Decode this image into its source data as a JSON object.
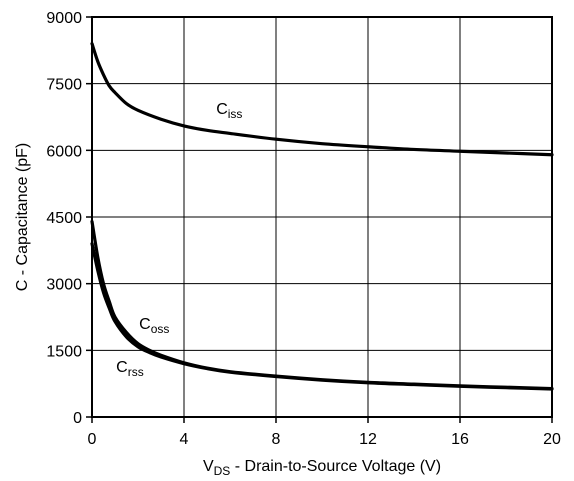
{
  "chart_data": {
    "type": "line",
    "title": "",
    "xlabel": {
      "main": "V",
      "sub": "DS",
      "rest": " - Drain-to-Source Voltage (V)"
    },
    "ylabel": "C - Capacitance (pF)",
    "xlim": [
      0,
      20
    ],
    "ylim": [
      0,
      9000
    ],
    "xticks": [
      0,
      4,
      8,
      12,
      16,
      20
    ],
    "yticks": [
      0,
      1500,
      3000,
      4500,
      6000,
      7500,
      9000
    ],
    "x_tick_labels": [
      "0",
      "4",
      "8",
      "12",
      "16",
      "20"
    ],
    "y_tick_labels": [
      "0",
      "1500",
      "3000",
      "4500",
      "6000",
      "7500",
      "9000"
    ],
    "grid": true,
    "legend": "none",
    "colors": {
      "line": "#000000",
      "grid": "#000000",
      "background": "#ffffff"
    },
    "series": [
      {
        "name": "Ciss",
        "label_main": "C",
        "label_sub": "iss",
        "x": [
          0,
          0.25,
          0.5,
          0.75,
          1,
          1.5,
          2,
          3,
          4,
          5,
          6,
          8,
          10,
          12,
          14,
          16,
          18,
          20
        ],
        "values": [
          8400,
          8000,
          7700,
          7450,
          7300,
          7050,
          6900,
          6700,
          6550,
          6450,
          6380,
          6250,
          6150,
          6080,
          6020,
          5980,
          5940,
          5900
        ]
      },
      {
        "name": "Coss",
        "label_main": "C",
        "label_sub": "oss",
        "x": [
          0,
          0.25,
          0.5,
          0.75,
          1,
          1.5,
          2,
          2.5,
          3,
          4,
          5,
          6,
          8,
          10,
          12,
          14,
          16,
          18,
          20
        ],
        "values": [
          4400,
          3600,
          3000,
          2600,
          2250,
          1900,
          1650,
          1500,
          1390,
          1220,
          1100,
          1020,
          920,
          840,
          780,
          740,
          700,
          670,
          640
        ]
      },
      {
        "name": "Crss",
        "label_main": "C",
        "label_sub": "rss",
        "x": [
          0,
          0.25,
          0.5,
          0.75,
          1,
          1.5,
          2,
          2.5,
          3,
          4,
          5,
          6,
          8,
          10,
          12,
          14,
          16,
          18,
          20
        ],
        "values": [
          3900,
          3300,
          2800,
          2450,
          2150,
          1800,
          1580,
          1450,
          1350,
          1200,
          1090,
          1010,
          910,
          830,
          770,
          730,
          690,
          660,
          630
        ]
      }
    ],
    "annotations": [
      {
        "series": "Ciss",
        "x": 5.4,
        "y": 6820
      },
      {
        "series": "Coss",
        "x": 2.05,
        "y": 1980
      },
      {
        "series": "Crss",
        "x": 1.05,
        "y": 1010
      }
    ]
  }
}
